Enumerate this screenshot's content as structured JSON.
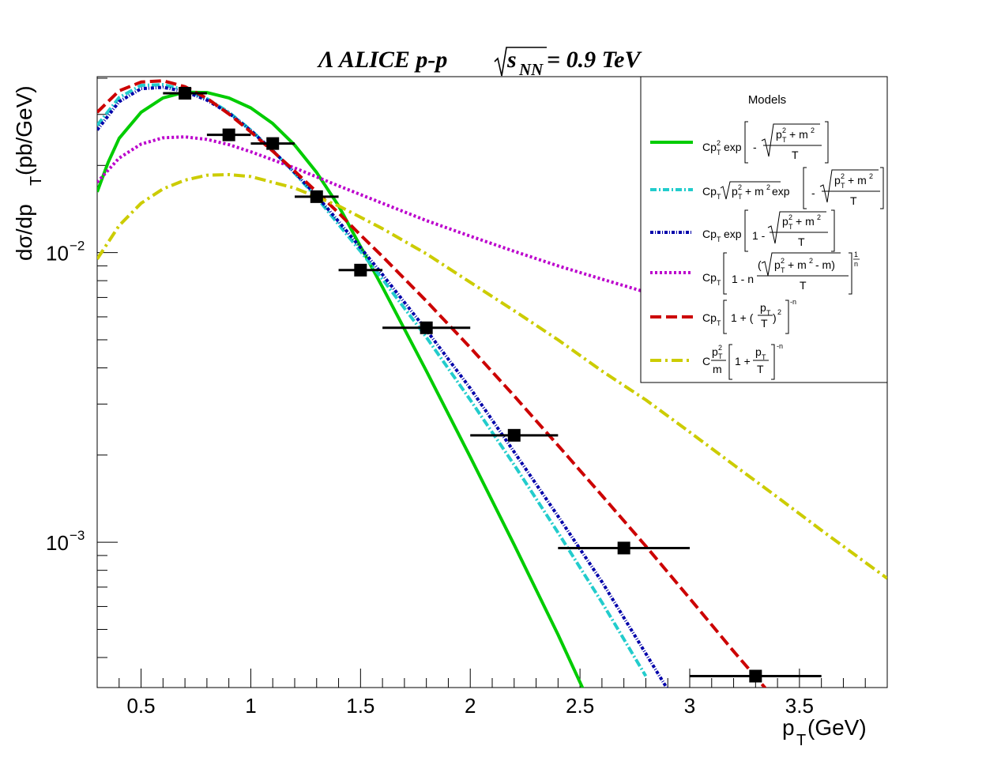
{
  "chart_data": {
    "type": "line",
    "title": "Λ ALICE p-p  √s_NN= 0.9 TeV",
    "title_parts": {
      "prefix": "Λ ALICE p-p",
      "sqrt_s": "s",
      "sub": "NN",
      "suffix": "= 0.9 TeV"
    },
    "xlabel": "p_T (GeV)",
    "xlabel_parts": {
      "p": "p",
      "sub": "T",
      "rest": " (GeV)"
    },
    "ylabel": "dσ/dp_T (pb/GeV)",
    "ylabel_parts": {
      "main": "dσ/dp",
      "sub": "T",
      "rest": " (pb/GeV)"
    },
    "xlim": [
      0.3,
      3.9
    ],
    "ylim": [
      0.000315,
      0.0405
    ],
    "yscale": "log",
    "x_ticks": [
      "0.5",
      "1",
      "1.5",
      "2",
      "2.5",
      "3",
      "3.5"
    ],
    "y_ticks": [
      {
        "value": 0.01,
        "base": "10",
        "exp": "−2"
      },
      {
        "value": 0.001,
        "base": "10",
        "exp": "−3"
      }
    ],
    "legend": {
      "title": "Models",
      "placement": "top-right"
    },
    "data_points": {
      "x": [
        0.7,
        0.9,
        1.1,
        1.3,
        1.5,
        1.8,
        2.2,
        2.7,
        3.3
      ],
      "y": [
        0.0355,
        0.0255,
        0.0238,
        0.0156,
        0.0087,
        0.0055,
        0.00234,
        0.000955,
        0.000345
      ],
      "x_err": [
        0.1,
        0.1,
        0.1,
        0.1,
        0.1,
        0.2,
        0.2,
        0.3,
        0.3
      ],
      "color": "#000000"
    },
    "series": [
      {
        "color": "#00cc00",
        "x": [
          0.3,
          0.35,
          0.4,
          0.5,
          0.6,
          0.7,
          0.8,
          0.9,
          1.0,
          1.1,
          1.2,
          1.3,
          1.4,
          1.5,
          1.6,
          1.8,
          2.0,
          2.2,
          2.4,
          2.6
        ],
        "y": [
          0.0162,
          0.0205,
          0.0248,
          0.0305,
          0.0342,
          0.0358,
          0.0357,
          0.0342,
          0.0316,
          0.0279,
          0.0235,
          0.0189,
          0.0145,
          0.0105,
          0.0076,
          0.0039,
          0.00197,
          0.00098,
          0.00048,
          0.000225
        ]
      },
      {
        "color": "#22cccc",
        "x": [
          0.3,
          0.4,
          0.5,
          0.6,
          0.7,
          0.8,
          0.9,
          1.0,
          1.1,
          1.2,
          1.3,
          1.4,
          1.5,
          1.6,
          1.8,
          2.0,
          2.2,
          2.4,
          2.6,
          2.8
        ],
        "y": [
          0.0275,
          0.0343,
          0.0378,
          0.038,
          0.0365,
          0.034,
          0.0305,
          0.0265,
          0.0225,
          0.0188,
          0.0155,
          0.0125,
          0.0101,
          0.0081,
          0.0051,
          0.0031,
          0.00185,
          0.00108,
          0.00062,
          0.000345
        ]
      },
      {
        "color": "#0000aa",
        "x": [
          0.3,
          0.4,
          0.5,
          0.6,
          0.7,
          0.8,
          0.9,
          1.0,
          1.1,
          1.2,
          1.3,
          1.4,
          1.5,
          1.6,
          1.8,
          2.0,
          2.2,
          2.4,
          2.6,
          2.9
        ],
        "y": [
          0.0265,
          0.0332,
          0.0368,
          0.0372,
          0.036,
          0.0336,
          0.0303,
          0.0264,
          0.0225,
          0.0189,
          0.0157,
          0.0128,
          0.0104,
          0.0084,
          0.0054,
          0.0034,
          0.00205,
          0.00123,
          0.00073,
          0.00031
        ]
      },
      {
        "color": "#bb00cc",
        "x": [
          0.3,
          0.4,
          0.5,
          0.6,
          0.7,
          0.8,
          0.9,
          1.0,
          1.2,
          1.4,
          1.6,
          1.8,
          2.0,
          2.2,
          2.4,
          2.6,
          2.8,
          3.0,
          3.2,
          3.4,
          3.6,
          3.9
        ],
        "y": [
          0.0175,
          0.0212,
          0.0237,
          0.0249,
          0.0251,
          0.0246,
          0.0236,
          0.0223,
          0.0196,
          0.017,
          0.0148,
          0.0129,
          0.0114,
          0.0101,
          0.009,
          0.0081,
          0.0073,
          0.0066,
          0.006,
          0.0054,
          0.0049,
          0.0042
        ]
      },
      {
        "color": "#cc0000",
        "x": [
          0.3,
          0.4,
          0.5,
          0.6,
          0.7,
          0.8,
          0.9,
          1.0,
          1.1,
          1.2,
          1.3,
          1.4,
          1.5,
          1.6,
          1.8,
          2.0,
          2.2,
          2.4,
          2.6,
          2.8,
          3.0,
          3.2,
          3.35
        ],
        "y": [
          0.0305,
          0.0362,
          0.0388,
          0.0392,
          0.0374,
          0.0341,
          0.0301,
          0.0261,
          0.0224,
          0.0191,
          0.0162,
          0.0137,
          0.0115,
          0.0097,
          0.0068,
          0.0047,
          0.0032,
          0.00216,
          0.00145,
          0.00097,
          0.00064,
          0.00042,
          0.00031
        ]
      },
      {
        "color": "#cccc00",
        "x": [
          0.3,
          0.4,
          0.5,
          0.6,
          0.7,
          0.8,
          0.9,
          1.0,
          1.2,
          1.4,
          1.6,
          1.8,
          2.0,
          2.2,
          2.4,
          2.6,
          2.8,
          3.0,
          3.2,
          3.4,
          3.6,
          3.9
        ],
        "y": [
          0.0095,
          0.0124,
          0.0148,
          0.0166,
          0.0178,
          0.0185,
          0.0186,
          0.0183,
          0.0167,
          0.0145,
          0.0121,
          0.0099,
          0.0079,
          0.0063,
          0.005,
          0.0039,
          0.0031,
          0.0024,
          0.00185,
          0.00143,
          0.0011,
          0.00075
        ]
      }
    ]
  }
}
